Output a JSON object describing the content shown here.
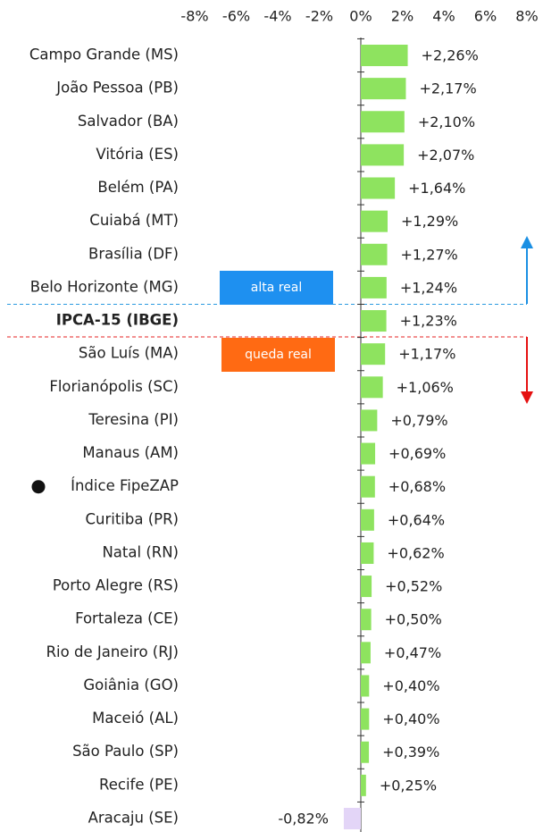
{
  "chart_data": {
    "type": "barh",
    "categories": [
      "Campo Grande (MS)",
      "João Pessoa (PB)",
      "Salvador (BA)",
      "Vitória (ES)",
      "Belém (PA)",
      "Cuiabá (MT)",
      "Brasília (DF)",
      "Belo Horizonte (MG)",
      "IPCA-15 (IBGE)",
      "São Luís (MA)",
      "Florianópolis (SC)",
      "Teresina (PI)",
      "Manaus (AM)",
      "Índice FipeZAP",
      "Curitiba (PR)",
      "Natal (RN)",
      "Porto Alegre (RS)",
      "Fortaleza (CE)",
      "Rio de Janeiro (RJ)",
      "Goiânia (GO)",
      "Maceió (AL)",
      "São Paulo (SP)",
      "Recife (PE)",
      "Aracaju (SE)"
    ],
    "values": [
      2.26,
      2.17,
      2.1,
      2.07,
      1.64,
      1.29,
      1.27,
      1.24,
      1.23,
      1.17,
      1.06,
      0.79,
      0.69,
      0.68,
      0.64,
      0.62,
      0.52,
      0.5,
      0.47,
      0.4,
      0.4,
      0.39,
      0.25,
      -0.82
    ],
    "value_labels": [
      "+2,26%",
      "+2,17%",
      "+2,10%",
      "+2,07%",
      "+1,64%",
      "+1,29%",
      "+1,27%",
      "+1,24%",
      "+1,23%",
      "+1,17%",
      "+1,06%",
      "+0,79%",
      "+0,69%",
      "+0,68%",
      "+0,64%",
      "+0,62%",
      "+0,52%",
      "+0,50%",
      "+0,47%",
      "+0,40%",
      "+0,40%",
      "+0,39%",
      "+0,25%",
      "-0,82%"
    ],
    "color": "#8ee35f",
    "negative_color": "#e3d5f7",
    "xlim": [
      -8,
      8
    ],
    "xticks": [
      {
        "value": -8,
        "label": "-8%"
      },
      {
        "value": -6,
        "label": "-6%"
      },
      {
        "value": -4,
        "label": "-4%"
      },
      {
        "value": -2,
        "label": "-2%"
      },
      {
        "value": 0,
        "label": "0%"
      },
      {
        "value": 2,
        "label": "2%"
      },
      {
        "value": 4,
        "label": "4%"
      },
      {
        "value": 6,
        "label": "6%"
      },
      {
        "value": 8,
        "label": "8%"
      }
    ],
    "annotations": {
      "above": "alta real",
      "below": "queda real"
    }
  }
}
